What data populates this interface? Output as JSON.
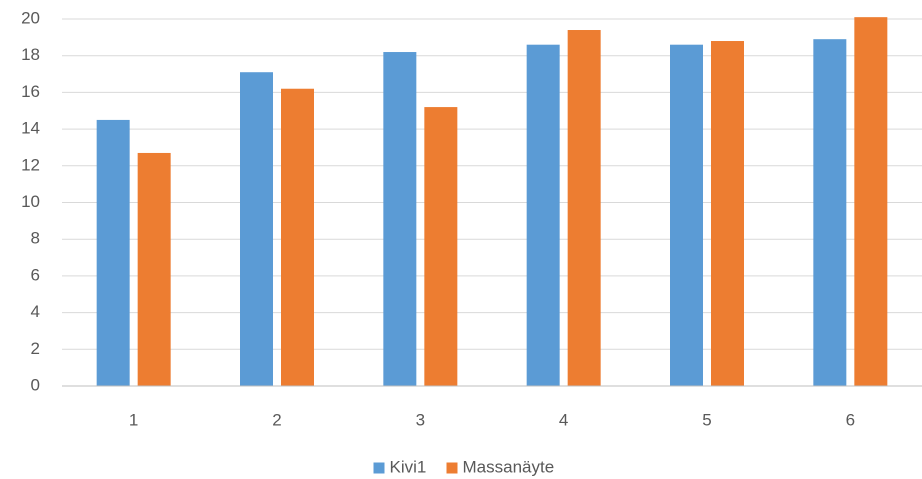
{
  "chart_data": {
    "type": "bar",
    "title": "",
    "xlabel": "",
    "ylabel": "",
    "categories": [
      "1",
      "2",
      "3",
      "4",
      "5",
      "6"
    ],
    "series": [
      {
        "name": "Kivi1",
        "color": "#5b9bd5",
        "values": [
          14.5,
          17.1,
          18.2,
          18.6,
          18.6,
          18.9
        ]
      },
      {
        "name": "Massanäyte",
        "color": "#ed7d31",
        "values": [
          12.7,
          16.2,
          15.2,
          19.4,
          18.8,
          20.1
        ]
      }
    ],
    "ylim": [
      0,
      20
    ],
    "yticks": [
      0,
      2,
      4,
      6,
      8,
      10,
      12,
      14,
      16,
      18,
      20
    ],
    "grid": true,
    "legend_position": "bottom"
  }
}
